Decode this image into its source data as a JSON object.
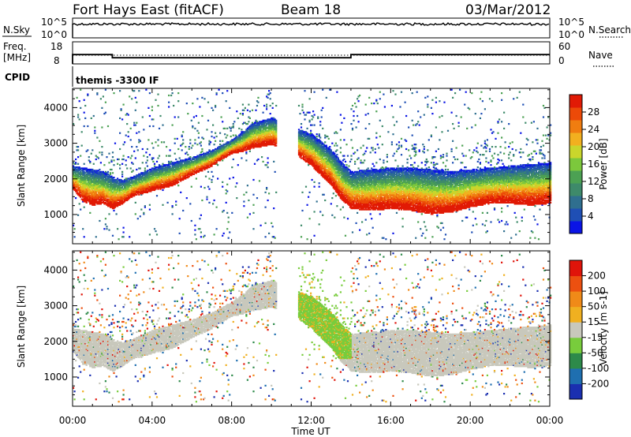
{
  "header": {
    "radar_title": "Fort Hays East (fitACF)",
    "beam_label": "Beam 18",
    "date_label": "03/Mar/2012"
  },
  "status_panels": {
    "nsky_label": "N.Sky",
    "nsky_ticks": [
      "10^5",
      "10^0"
    ],
    "nsearch_label": "N.Search",
    "nsearch_ticks": [
      "10^5",
      "10^0"
    ],
    "freq_label": "Freq.",
    "freq_unit": "[MHz]",
    "freq_ticks": [
      "18",
      "8"
    ],
    "nave_label": "Nave",
    "nave_ticks": [
      "60",
      "0"
    ],
    "cpid_label": "CPID",
    "cpid_text": "themis -3300 IF",
    "freq_series_mhz": {
      "t_hours": [
        0,
        2,
        2,
        14,
        14,
        24
      ],
      "values": [
        12.2,
        12.2,
        10.8,
        10.8,
        12.2,
        12.2
      ]
    }
  },
  "chart_data": [
    {
      "type": "heatmap",
      "ylabel": "Slant Range [km]",
      "ylim": [
        180,
        4540
      ],
      "xlim": [
        0,
        24
      ],
      "yticks": [
        "4000",
        "3000",
        "2000",
        "1000"
      ],
      "colorbar": {
        "label": "Power [dB]",
        "ticks": [
          "28",
          "24",
          "20",
          "16",
          "12",
          "8",
          "4"
        ],
        "range": [
          0,
          30
        ],
        "colors": [
          "#0a14e6",
          "#1f4fb5",
          "#2f6f8f",
          "#3e8a6a",
          "#4ca153",
          "#7cc83c",
          "#c9d62c",
          "#f2b01f",
          "#f07d10",
          "#ec4a08",
          "#e11a05"
        ]
      }
    },
    {
      "type": "heatmap",
      "ylabel": "Velocity [m s^-1]",
      "ylabel_left": "Slant Range [km]",
      "ylim": [
        180,
        4540
      ],
      "xlim": [
        0,
        24
      ],
      "yticks": [
        "4000",
        "3000",
        "2000",
        "1000"
      ],
      "colorbar": {
        "label": "Velocity [m s-1]",
        "ticks": [
          "200",
          "100",
          "50",
          "15",
          "-15",
          "-50",
          "-100",
          "-200"
        ],
        "colors": [
          "#1a2fb0",
          "#1f6fb0",
          "#2d8a4a",
          "#78cc3c",
          "#c8c8bc",
          "#f0b020",
          "#f08a18",
          "#ec5010",
          "#e0140a"
        ]
      }
    }
  ],
  "time_axis": {
    "tick_labels": [
      "00:00",
      "04:00",
      "08:00",
      "12:00",
      "16:00",
      "20:00",
      "00:00"
    ],
    "label": "Time UT"
  },
  "scatter_band": {
    "lower_km": [
      [
        0,
        1700
      ],
      [
        0.5,
        1350
      ],
      [
        1,
        1250
      ],
      [
        1.5,
        1300
      ],
      [
        2,
        1150
      ],
      [
        2.5,
        1300
      ],
      [
        3,
        1500
      ],
      [
        4,
        1650
      ],
      [
        5,
        1800
      ],
      [
        6,
        2100
      ],
      [
        7,
        2350
      ],
      [
        7.5,
        2550
      ],
      [
        8,
        2700
      ],
      [
        8.5,
        2750
      ],
      [
        9,
        2850
      ],
      [
        10,
        2950
      ],
      [
        11,
        2750
      ],
      [
        12,
        2350
      ],
      [
        13,
        1800
      ],
      [
        13.5,
        1400
      ],
      [
        14,
        1150
      ],
      [
        15,
        1100
      ],
      [
        16,
        1150
      ],
      [
        17,
        1100
      ],
      [
        18,
        1000
      ],
      [
        19,
        1050
      ],
      [
        20,
        1200
      ],
      [
        21,
        1300
      ],
      [
        22,
        1300
      ],
      [
        23,
        1250
      ],
      [
        24,
        1300
      ]
    ],
    "upper_km": [
      [
        0,
        2350
      ],
      [
        0.5,
        2300
      ],
      [
        1,
        2250
      ],
      [
        1.5,
        2200
      ],
      [
        2,
        2050
      ],
      [
        2.5,
        1950
      ],
      [
        3,
        2050
      ],
      [
        4,
        2300
      ],
      [
        5,
        2450
      ],
      [
        6,
        2600
      ],
      [
        7,
        2800
      ],
      [
        7.5,
        2950
      ],
      [
        8,
        3100
      ],
      [
        8.5,
        3300
      ],
      [
        9,
        3550
      ],
      [
        10,
        3700
      ],
      [
        11,
        3450
      ],
      [
        12,
        3250
      ],
      [
        13,
        2800
      ],
      [
        13.5,
        2450
      ],
      [
        14,
        2200
      ],
      [
        15,
        2250
      ],
      [
        16,
        2300
      ],
      [
        17,
        2300
      ],
      [
        18,
        2250
      ],
      [
        19,
        2200
      ],
      [
        20,
        2250
      ],
      [
        21,
        2300
      ],
      [
        22,
        2350
      ],
      [
        23,
        2400
      ],
      [
        24,
        2450
      ]
    ]
  }
}
